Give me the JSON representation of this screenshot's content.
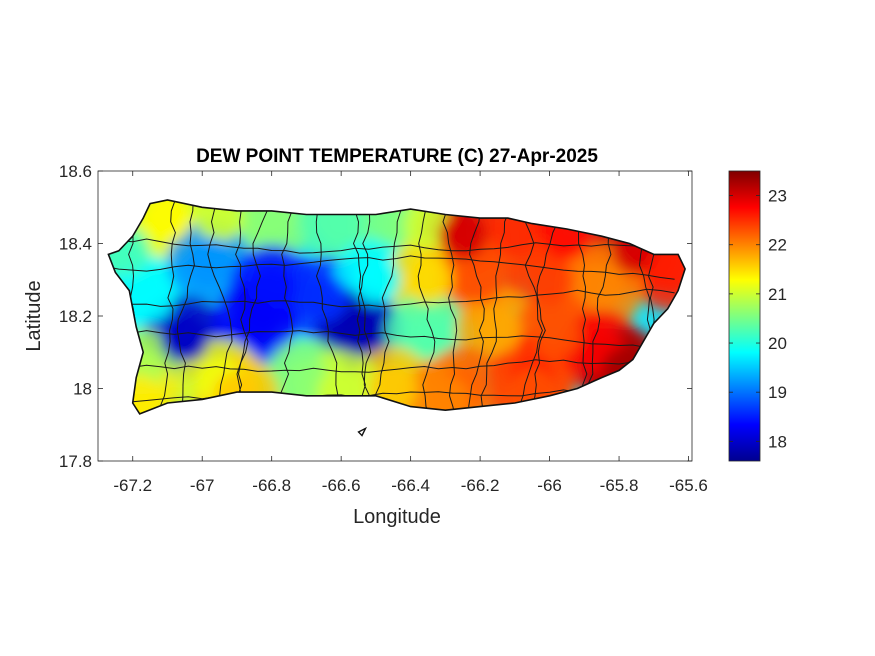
{
  "chart_data": {
    "type": "heatmap",
    "title": "DEW POINT TEMPERATURE (C) 27-Apr-2025",
    "xlabel": "Longitude",
    "ylabel": "Latitude",
    "xlim": [
      -67.3,
      -65.59
    ],
    "ylim": [
      17.8,
      18.6
    ],
    "x_ticks": [
      -67.2,
      -67,
      -66.8,
      -66.6,
      -66.4,
      -66.2,
      -66,
      -65.8,
      -65.6
    ],
    "x_tick_labels": [
      "-67.2",
      "-67",
      "-66.8",
      "-66.6",
      "-66.4",
      "-66.2",
      "-66",
      "-65.8",
      "-65.6"
    ],
    "y_ticks": [
      18.6,
      18.4,
      18.2,
      18,
      17.8
    ],
    "y_tick_labels": [
      "18.6",
      "18.4",
      "18.2",
      "18",
      "17.8"
    ],
    "colorbar": {
      "colormap": "jet",
      "range": [
        17.6,
        23.5
      ],
      "ticks": [
        18,
        19,
        20,
        21,
        22,
        23
      ],
      "tick_labels": [
        "18",
        "19",
        "20",
        "21",
        "22",
        "23"
      ]
    },
    "field_samples": [
      {
        "lon": -67.22,
        "lat": 18.38,
        "value": 20.2
      },
      {
        "lon": -67.1,
        "lat": 18.47,
        "value": 21.3
      },
      {
        "lon": -66.95,
        "lat": 18.47,
        "value": 21.0
      },
      {
        "lon": -66.8,
        "lat": 18.47,
        "value": 20.6
      },
      {
        "lon": -66.6,
        "lat": 18.46,
        "value": 20.3
      },
      {
        "lon": -66.45,
        "lat": 18.46,
        "value": 20.5
      },
      {
        "lon": -66.35,
        "lat": 18.45,
        "value": 21.0
      },
      {
        "lon": -66.25,
        "lat": 18.42,
        "value": 23.0
      },
      {
        "lon": -66.1,
        "lat": 18.43,
        "value": 22.5
      },
      {
        "lon": -65.95,
        "lat": 18.42,
        "value": 22.7
      },
      {
        "lon": -65.75,
        "lat": 18.38,
        "value": 23.0
      },
      {
        "lon": -65.65,
        "lat": 18.33,
        "value": 22.6
      },
      {
        "lon": -67.15,
        "lat": 18.25,
        "value": 19.8
      },
      {
        "lon": -66.98,
        "lat": 18.35,
        "value": 19.2
      },
      {
        "lon": -66.8,
        "lat": 18.28,
        "value": 18.4
      },
      {
        "lon": -66.65,
        "lat": 18.25,
        "value": 18.6
      },
      {
        "lon": -66.5,
        "lat": 18.3,
        "value": 19.8
      },
      {
        "lon": -66.35,
        "lat": 18.3,
        "value": 21.5
      },
      {
        "lon": -66.2,
        "lat": 18.3,
        "value": 22.3
      },
      {
        "lon": -66.0,
        "lat": 18.3,
        "value": 22.4
      },
      {
        "lon": -65.85,
        "lat": 18.28,
        "value": 22.0
      },
      {
        "lon": -67.05,
        "lat": 18.14,
        "value": 18.0
      },
      {
        "lon": -66.85,
        "lat": 18.18,
        "value": 18.3
      },
      {
        "lon": -66.55,
        "lat": 18.16,
        "value": 17.9
      },
      {
        "lon": -66.35,
        "lat": 18.15,
        "value": 20.3
      },
      {
        "lon": -66.15,
        "lat": 18.16,
        "value": 21.8
      },
      {
        "lon": -65.98,
        "lat": 18.15,
        "value": 22.3
      },
      {
        "lon": -65.85,
        "lat": 18.1,
        "value": 22.8
      },
      {
        "lon": -65.78,
        "lat": 18.05,
        "value": 23.3
      },
      {
        "lon": -67.18,
        "lat": 18.05,
        "value": 20.8
      },
      {
        "lon": -66.95,
        "lat": 18.02,
        "value": 21.2
      },
      {
        "lon": -66.7,
        "lat": 18.02,
        "value": 20.6
      },
      {
        "lon": -66.45,
        "lat": 18.0,
        "value": 21.6
      },
      {
        "lon": -66.25,
        "lat": 18.0,
        "value": 22.2
      },
      {
        "lon": -66.05,
        "lat": 18.03,
        "value": 22.6
      },
      {
        "lon": -67.18,
        "lat": 17.97,
        "value": 21.4
      },
      {
        "lon": -66.9,
        "lat": 17.98,
        "value": 21.6
      },
      {
        "lon": -66.6,
        "lat": 17.99,
        "value": 21.0
      },
      {
        "lon": -66.3,
        "lat": 17.97,
        "value": 22.0
      },
      {
        "lon": -66.05,
        "lat": 17.99,
        "value": 22.3
      }
    ],
    "island_outline": [
      [
        -67.27,
        18.37
      ],
      [
        -67.24,
        18.38
      ],
      [
        -67.2,
        18.42
      ],
      [
        -67.17,
        18.47
      ],
      [
        -67.15,
        18.51
      ],
      [
        -67.1,
        18.52
      ],
      [
        -67.0,
        18.5
      ],
      [
        -66.9,
        18.49
      ],
      [
        -66.8,
        18.49
      ],
      [
        -66.7,
        18.48
      ],
      [
        -66.6,
        18.48
      ],
      [
        -66.5,
        18.48
      ],
      [
        -66.4,
        18.495
      ],
      [
        -66.3,
        18.48
      ],
      [
        -66.2,
        18.47
      ],
      [
        -66.12,
        18.47
      ],
      [
        -66.05,
        18.455
      ],
      [
        -65.95,
        18.44
      ],
      [
        -65.85,
        18.42
      ],
      [
        -65.77,
        18.4
      ],
      [
        -65.7,
        18.37
      ],
      [
        -65.63,
        18.37
      ],
      [
        -65.61,
        18.33
      ],
      [
        -65.63,
        18.27
      ],
      [
        -65.66,
        18.22
      ],
      [
        -65.7,
        18.18
      ],
      [
        -65.73,
        18.13
      ],
      [
        -65.76,
        18.08
      ],
      [
        -65.8,
        18.05
      ],
      [
        -65.85,
        18.03
      ],
      [
        -65.92,
        18.0
      ],
      [
        -66.0,
        17.98
      ],
      [
        -66.1,
        17.96
      ],
      [
        -66.2,
        17.95
      ],
      [
        -66.3,
        17.94
      ],
      [
        -66.4,
        17.95
      ],
      [
        -66.5,
        17.98
      ],
      [
        -66.6,
        17.98
      ],
      [
        -66.7,
        17.98
      ],
      [
        -66.8,
        17.99
      ],
      [
        -66.9,
        17.99
      ],
      [
        -67.0,
        17.97
      ],
      [
        -67.1,
        17.96
      ],
      [
        -67.18,
        17.93
      ],
      [
        -67.2,
        17.96
      ],
      [
        -67.19,
        18.03
      ],
      [
        -67.17,
        18.1
      ],
      [
        -67.19,
        18.17
      ],
      [
        -67.21,
        18.27
      ],
      [
        -67.25,
        18.32
      ]
    ],
    "vieques_islet": [
      [
        -66.55,
        17.88
      ],
      [
        -66.53,
        17.89
      ],
      [
        -66.54,
        17.87
      ]
    ]
  }
}
